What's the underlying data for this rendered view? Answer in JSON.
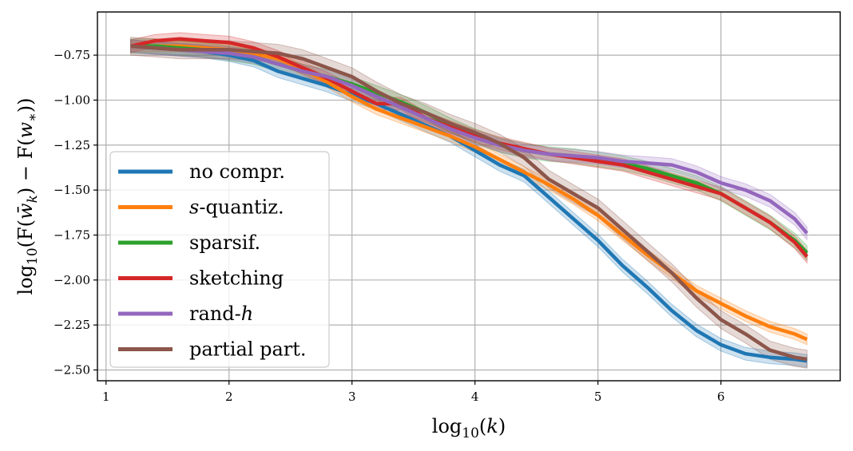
{
  "chart_data": {
    "type": "line",
    "xlabel": "log10(k)",
    "ylabel": "log10(F(w̄k) − F(w*))",
    "xlim": [
      0.93,
      6.97
    ],
    "ylim": [
      -2.56,
      -0.51
    ],
    "xticks": [
      1,
      2,
      3,
      4,
      5,
      6
    ],
    "yticks": [
      -0.75,
      -1.0,
      -1.25,
      -1.5,
      -1.75,
      -2.0,
      -2.25,
      -2.5
    ],
    "grid": true,
    "legend_position": "lower-left",
    "x": [
      1.2,
      1.4,
      1.6,
      1.8,
      2.0,
      2.2,
      2.4,
      2.6,
      2.8,
      3.0,
      3.2,
      3.4,
      3.6,
      3.8,
      4.0,
      4.2,
      4.4,
      4.6,
      4.8,
      5.0,
      5.2,
      5.4,
      5.6,
      5.8,
      6.0,
      6.2,
      6.4,
      6.6,
      6.7
    ],
    "series": [
      {
        "name": "no compr.",
        "color": "#1f77b4",
        "values": [
          -0.7,
          -0.71,
          -0.72,
          -0.73,
          -0.75,
          -0.78,
          -0.84,
          -0.88,
          -0.92,
          -0.97,
          -1.02,
          -1.08,
          -1.14,
          -1.2,
          -1.28,
          -1.36,
          -1.42,
          -1.54,
          -1.66,
          -1.78,
          -1.92,
          -2.04,
          -2.17,
          -2.28,
          -2.36,
          -2.41,
          -2.43,
          -2.44,
          -2.45
        ],
        "band": 0.035
      },
      {
        "name": "s-quantiz.",
        "color": "#ff7f0e",
        "values": [
          -0.7,
          -0.7,
          -0.7,
          -0.71,
          -0.72,
          -0.74,
          -0.77,
          -0.83,
          -0.9,
          -0.98,
          -1.05,
          -1.1,
          -1.15,
          -1.2,
          -1.26,
          -1.33,
          -1.4,
          -1.47,
          -1.55,
          -1.64,
          -1.75,
          -1.86,
          -1.96,
          -2.06,
          -2.13,
          -2.2,
          -2.26,
          -2.3,
          -2.33
        ],
        "band": 0.03
      },
      {
        "name": "sparsif.",
        "color": "#2ca02c",
        "values": [
          -0.7,
          -0.7,
          -0.71,
          -0.72,
          -0.74,
          -0.76,
          -0.8,
          -0.84,
          -0.87,
          -0.91,
          -0.96,
          -1.01,
          -1.07,
          -1.14,
          -1.2,
          -1.25,
          -1.28,
          -1.3,
          -1.31,
          -1.33,
          -1.35,
          -1.38,
          -1.42,
          -1.46,
          -1.52,
          -1.6,
          -1.68,
          -1.78,
          -1.85
        ],
        "band": 0.04
      },
      {
        "name": "sketching",
        "color": "#d62728",
        "values": [
          -0.7,
          -0.67,
          -0.66,
          -0.67,
          -0.68,
          -0.71,
          -0.76,
          -0.82,
          -0.88,
          -0.95,
          -1.02,
          -1.02,
          -1.1,
          -1.15,
          -1.2,
          -1.24,
          -1.27,
          -1.3,
          -1.32,
          -1.34,
          -1.36,
          -1.4,
          -1.44,
          -1.48,
          -1.52,
          -1.6,
          -1.68,
          -1.79,
          -1.87
        ],
        "band": 0.035
      },
      {
        "name": "rand-h",
        "color": "#9467bd",
        "values": [
          -0.7,
          -0.71,
          -0.72,
          -0.73,
          -0.74,
          -0.76,
          -0.8,
          -0.84,
          -0.87,
          -0.92,
          -0.98,
          -1.04,
          -1.1,
          -1.16,
          -1.21,
          -1.25,
          -1.28,
          -1.3,
          -1.31,
          -1.32,
          -1.34,
          -1.35,
          -1.36,
          -1.4,
          -1.46,
          -1.5,
          -1.56,
          -1.66,
          -1.74
        ],
        "band": 0.035
      },
      {
        "name": "partial part.",
        "color": "#8c564b",
        "values": [
          -0.7,
          -0.71,
          -0.72,
          -0.72,
          -0.72,
          -0.73,
          -0.74,
          -0.77,
          -0.82,
          -0.87,
          -0.95,
          -1.02,
          -1.07,
          -1.13,
          -1.18,
          -1.24,
          -1.32,
          -1.44,
          -1.52,
          -1.6,
          -1.72,
          -1.84,
          -1.96,
          -2.1,
          -2.22,
          -2.3,
          -2.39,
          -2.43,
          -2.44
        ],
        "band": 0.05
      }
    ]
  }
}
